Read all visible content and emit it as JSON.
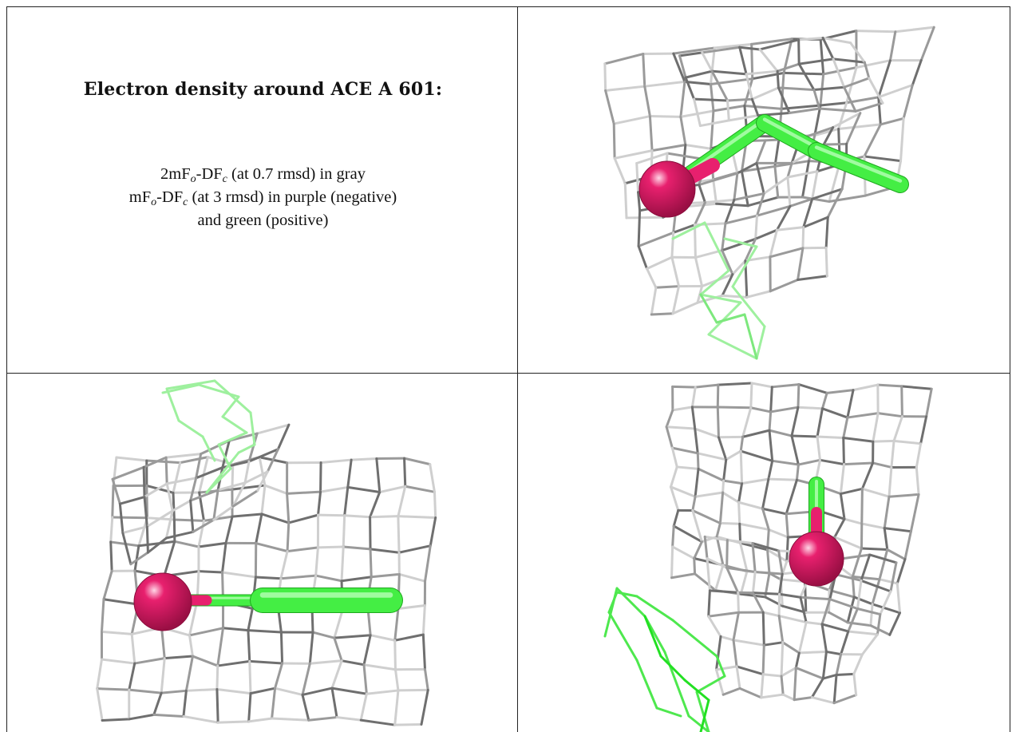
{
  "title": "Electron density around ACE A 601:",
  "legend_lines": [
    {
      "prefix": "2mF",
      "sub1": "o",
      "mid": "-DF",
      "sub2": "c",
      "suffix": " (at 0.7 rmsd) in gray"
    },
    {
      "prefix": "mF",
      "sub1": "o",
      "mid": "-DF",
      "sub2": "c",
      "suffix": " (at 3 rmsd) in purple (negative)"
    },
    {
      "prefix": "",
      "sub1": "",
      "mid": "",
      "sub2": "",
      "suffix": "and green (positive)"
    }
  ],
  "colors": {
    "mesh_gray": "#9a9a9a",
    "mesh_gray_light": "#cfcfcf",
    "mesh_gray_dark": "#6f6f6f",
    "mesh_green": "#22e022",
    "mesh_green_light": "#9ef09e",
    "atom_oxygen": "#e8206e",
    "bond_carbon": "#44ee44"
  },
  "views": [
    {
      "name": "view-top-right",
      "description_icon": "density-map-icon"
    },
    {
      "name": "view-bottom-left",
      "description_icon": "density-map-icon"
    },
    {
      "name": "view-bottom-right",
      "description_icon": "density-map-icon"
    }
  ]
}
